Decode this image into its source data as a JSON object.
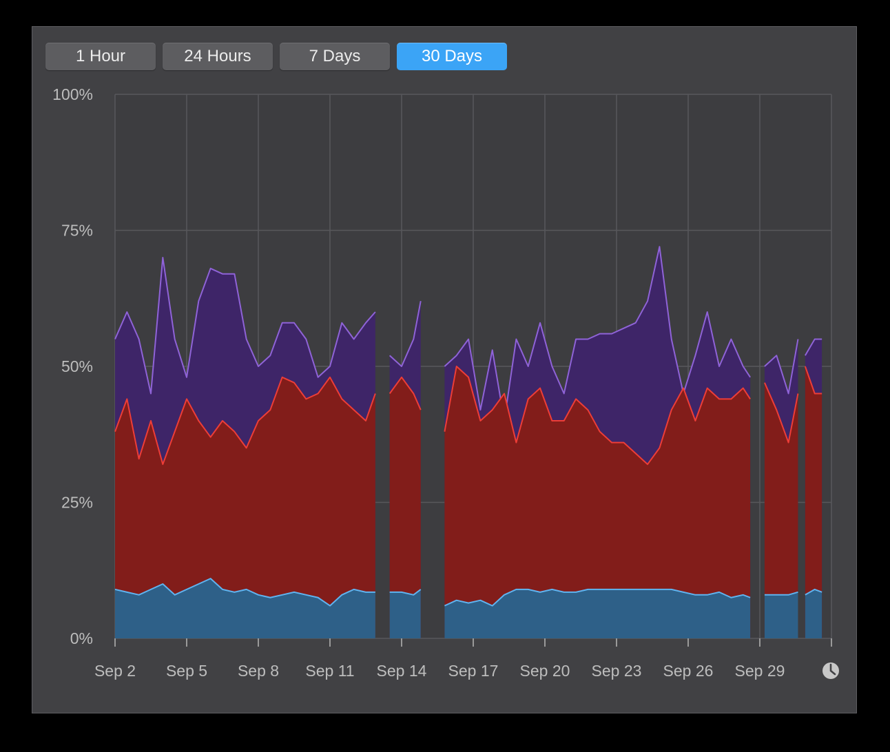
{
  "range_buttons": [
    {
      "label": "1 Hour",
      "active": false
    },
    {
      "label": "24 Hours",
      "active": false
    },
    {
      "label": "7 Days",
      "active": false
    },
    {
      "label": "30 Days",
      "active": true
    }
  ],
  "chart_data": {
    "type": "area",
    "stacked": true,
    "ylim": [
      0,
      100
    ],
    "ytick_labels": [
      "0%",
      "25%",
      "50%",
      "75%",
      "100%"
    ],
    "ytick_values": [
      0,
      25,
      50,
      75,
      100
    ],
    "xlim": [
      0,
      30
    ],
    "xtick_labels": [
      "Sep 2",
      "Sep 5",
      "Sep 8",
      "Sep 11",
      "Sep 14",
      "Sep 17",
      "Sep 20",
      "Sep 23",
      "Sep 26",
      "Sep 29"
    ],
    "xtick_values": [
      0,
      3,
      6,
      9,
      12,
      15,
      18,
      21,
      24,
      27
    ],
    "grid": true,
    "colors": {
      "bottom_fill": "#2e6088",
      "bottom_line": "#5fb4f0",
      "middle_fill": "#821d1a",
      "middle_line": "#ee3d37",
      "top_fill": "#3e2568",
      "top_line": "#8f63d8"
    },
    "segments": [
      {
        "x": [
          0.0,
          0.5,
          1.0,
          1.5,
          2.0,
          2.5,
          3.0,
          3.5,
          4.0,
          4.5,
          5.0,
          5.5,
          6.0,
          6.5,
          7.0,
          7.5,
          8.0,
          8.5,
          9.0,
          9.5,
          10.0,
          10.5,
          10.9
        ],
        "bottom": [
          9,
          8.5,
          8,
          9,
          10,
          8,
          9,
          10,
          11,
          9,
          8.5,
          9,
          8,
          7.5,
          8,
          8.5,
          8,
          7.5,
          6,
          8,
          9,
          8.5,
          8.5
        ],
        "middle": [
          38,
          44,
          33,
          40,
          32,
          38,
          44,
          40,
          37,
          40,
          38,
          35,
          40,
          42,
          48,
          47,
          44,
          45,
          48,
          44,
          42,
          40,
          45
        ],
        "top": [
          55,
          60,
          55,
          45,
          70,
          55,
          48,
          62,
          68,
          67,
          67,
          55,
          50,
          52,
          58,
          58,
          55,
          48,
          50,
          58,
          55,
          58,
          60
        ]
      },
      {
        "x": [
          11.5,
          12.0,
          12.5,
          12.8
        ],
        "bottom": [
          8.5,
          8.5,
          8,
          9
        ],
        "middle": [
          45,
          48,
          45,
          42
        ],
        "top": [
          52,
          50,
          55,
          62
        ]
      },
      {
        "x": [
          13.8,
          14.3,
          14.8,
          15.3,
          15.8,
          16.3,
          16.8,
          17.3,
          17.8,
          18.3,
          18.8,
          19.3,
          19.8,
          20.3,
          20.8,
          21.3,
          21.8,
          22.3,
          22.8,
          23.3,
          23.8,
          24.3,
          24.8,
          25.3,
          25.8,
          26.3,
          26.6
        ],
        "bottom": [
          6,
          7,
          6.5,
          7,
          6,
          8,
          9,
          9,
          8.5,
          9,
          8.5,
          8.5,
          9,
          9,
          9,
          9,
          9,
          9,
          9,
          9,
          8.5,
          8,
          8,
          8.5,
          7.5,
          8,
          7.5
        ],
        "middle": [
          38,
          50,
          48,
          40,
          42,
          45,
          36,
          44,
          46,
          40,
          40,
          44,
          42,
          38,
          36,
          36,
          34,
          32,
          35,
          42,
          46,
          40,
          46,
          44,
          44,
          46,
          44
        ],
        "top": [
          50,
          52,
          55,
          42,
          53,
          40,
          55,
          50,
          58,
          50,
          45,
          55,
          55,
          56,
          56,
          57,
          58,
          62,
          72,
          55,
          45,
          52,
          60,
          50,
          55,
          50,
          48
        ]
      },
      {
        "x": [
          27.2,
          27.7,
          28.2,
          28.6
        ],
        "bottom": [
          8,
          8,
          8,
          8.5
        ],
        "middle": [
          47,
          42,
          36,
          45
        ],
        "top": [
          50,
          52,
          45,
          55
        ]
      },
      {
        "x": [
          28.9,
          29.3,
          29.6
        ],
        "bottom": [
          8,
          9,
          8.5
        ],
        "middle": [
          50,
          45,
          45
        ],
        "top": [
          52,
          55,
          55
        ]
      }
    ]
  }
}
